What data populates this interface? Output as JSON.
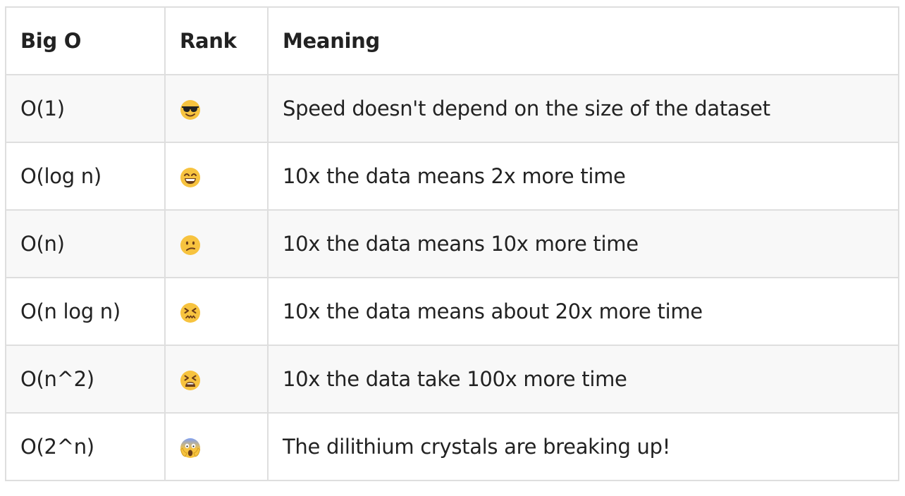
{
  "table": {
    "headers": [
      "Big O",
      "Rank",
      "Meaning"
    ],
    "rows": [
      {
        "big_o": "O(1)",
        "rank_icon": "smiling-face-with-sunglasses",
        "meaning": "Speed doesn't depend on the size of the dataset"
      },
      {
        "big_o": "O(log n)",
        "rank_icon": "grinning-face-with-smiling-eyes",
        "meaning": "10x the data means 2x more time"
      },
      {
        "big_o": "O(n)",
        "rank_icon": "confused-face",
        "meaning": "10x the data means 10x more time"
      },
      {
        "big_o": "O(n log n)",
        "rank_icon": "confounded-face",
        "meaning": "10x the data means about 20x more time"
      },
      {
        "big_o": "O(n^2)",
        "rank_icon": "tired-face",
        "meaning": "10x the data take 100x more time"
      },
      {
        "big_o": "O(2^n)",
        "rank_icon": "face-screaming-in-fear",
        "meaning": "The dilithium crystals are breaking up!"
      }
    ]
  },
  "colors": {
    "border": "#dedede",
    "stripe": "#f8f8f8",
    "text": "#222222",
    "emoji_yellow": "#f7c33f"
  }
}
